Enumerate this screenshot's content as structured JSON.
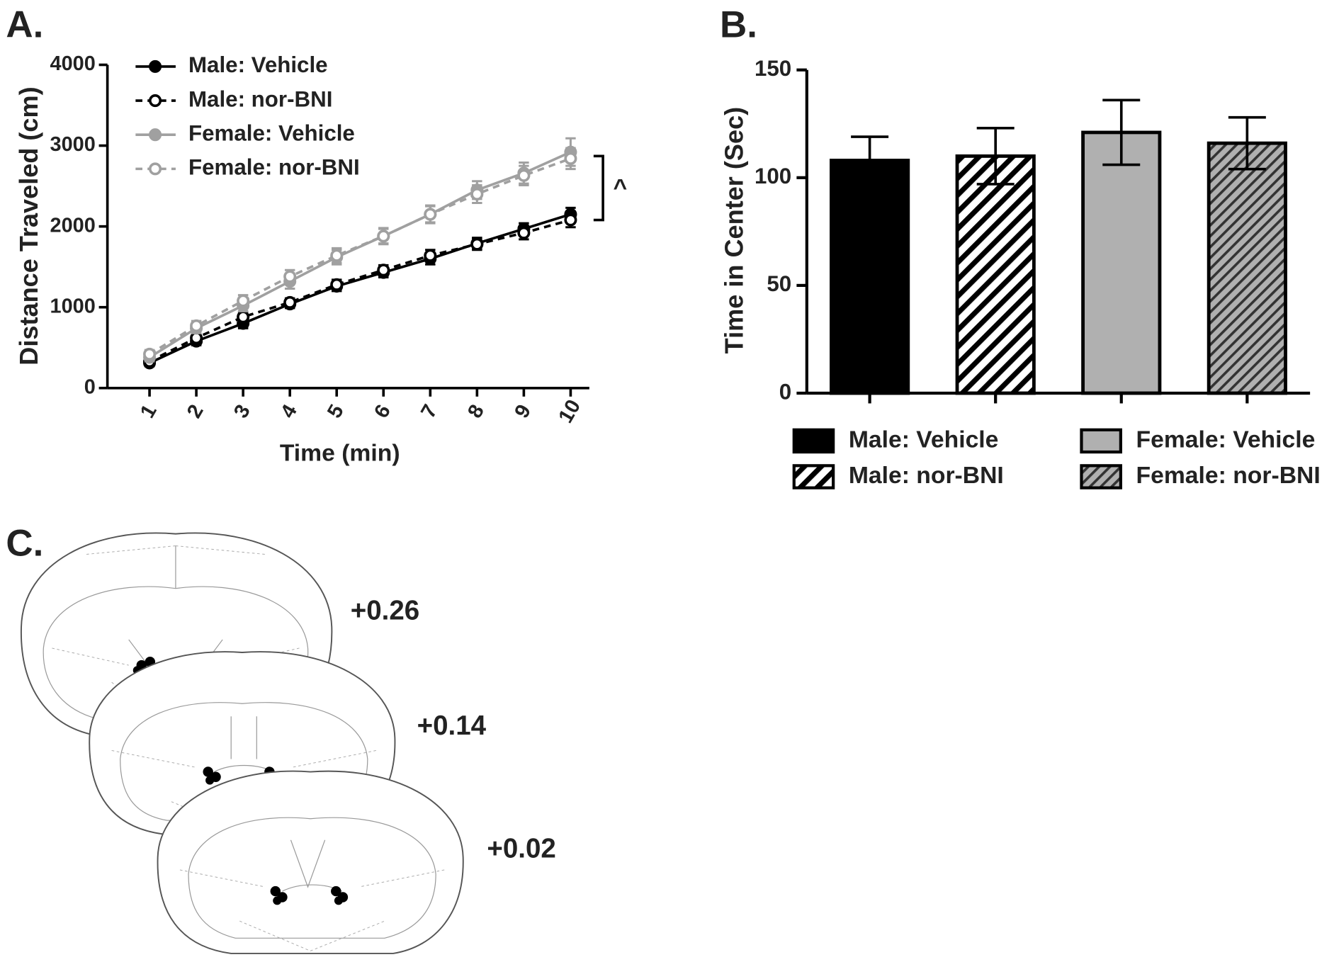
{
  "panel_labels": [
    "A.",
    "B.",
    "C."
  ],
  "chart_data": [
    {
      "type": "line",
      "xlabel": "Time (min)",
      "ylabel": "Distance Traveled (cm)",
      "x": [
        1,
        2,
        3,
        4,
        5,
        6,
        7,
        8,
        9,
        10
      ],
      "xlim": [
        0.1,
        10.4
      ],
      "xticks": [
        1,
        2,
        3,
        4,
        5,
        6,
        7,
        8,
        9,
        10
      ],
      "ylim": [
        0,
        4000
      ],
      "yticks": [
        0,
        1000,
        2000,
        3000,
        4000
      ],
      "annotation": "^",
      "series": [
        {
          "name": "Male: Vehicle",
          "color": "#000000",
          "dashed": false,
          "marker": "filled",
          "values": [
            310,
            580,
            800,
            1040,
            1260,
            1430,
            1600,
            1790,
            1970,
            2150
          ],
          "errors": [
            40,
            50,
            60,
            50,
            60,
            60,
            70,
            70,
            70,
            80
          ]
        },
        {
          "name": "Male: nor-BNI",
          "color": "#000000",
          "dashed": true,
          "marker": "open",
          "values": [
            330,
            620,
            880,
            1060,
            1280,
            1460,
            1640,
            1780,
            1920,
            2080
          ],
          "errors": [
            40,
            50,
            60,
            50,
            60,
            60,
            70,
            70,
            80,
            90
          ]
        },
        {
          "name": "Female: Vehicle",
          "color": "#a0a0a0",
          "dashed": false,
          "marker": "filled",
          "values": [
            380,
            740,
            1020,
            1320,
            1620,
            1880,
            2150,
            2450,
            2660,
            2920
          ],
          "errors": [
            50,
            60,
            70,
            90,
            90,
            100,
            110,
            110,
            130,
            170
          ]
        },
        {
          "name": "Female: nor-BNI",
          "color": "#a0a0a0",
          "dashed": true,
          "marker": "open",
          "values": [
            420,
            770,
            1080,
            1380,
            1640,
            1880,
            2150,
            2400,
            2630,
            2840
          ],
          "errors": [
            50,
            60,
            70,
            80,
            90,
            90,
            100,
            110,
            120,
            130
          ]
        }
      ]
    },
    {
      "type": "bar",
      "ylabel": "Time in Center (Sec)",
      "ylim": [
        0,
        150
      ],
      "yticks": [
        0,
        50,
        100,
        150
      ],
      "series": [
        {
          "name": "Male: Vehicle",
          "color": "#000000",
          "hatch": false,
          "values": [
            108
          ],
          "errors": [
            11
          ]
        },
        {
          "name": "Male: nor-BNI",
          "color": "#ffffff",
          "hatch": true,
          "values": [
            110
          ],
          "errors": [
            13
          ]
        },
        {
          "name": "Female: Vehicle",
          "color": "#b0b0b0",
          "hatch": false,
          "values": [
            121
          ],
          "errors": [
            15
          ]
        },
        {
          "name": "Female: nor-BNI",
          "color": "#b0b0b0",
          "hatch": true,
          "values": [
            116
          ],
          "errors": [
            12
          ]
        }
      ]
    }
  ],
  "sections": {
    "labels": [
      "+0.26",
      "+0.14",
      "+0.02"
    ]
  }
}
